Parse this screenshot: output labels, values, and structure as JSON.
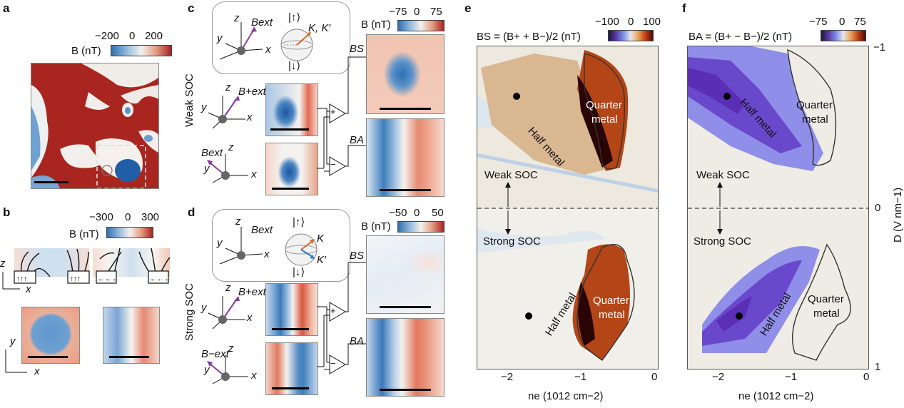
{
  "panels": {
    "a": {
      "label": "a",
      "colorbar": {
        "ticks": [
          "−200",
          "0",
          "200"
        ],
        "title": "B (nT)"
      }
    },
    "b": {
      "label": "b",
      "colorbar": {
        "ticks": [
          "−300",
          "0",
          "300"
        ],
        "title": "B (nT)"
      },
      "axes_side": {
        "z": "z",
        "x": "x"
      },
      "axes_top": {
        "y": "y",
        "x": "x"
      }
    },
    "c": {
      "label": "c",
      "side_label": "Weak SOC",
      "colorbar": {
        "ticks": [
          "−75",
          "0",
          "75"
        ],
        "title": "B (nT)"
      },
      "inset": {
        "z": "z",
        "y": "y",
        "x": "x",
        "bext": "Bext",
        "up": "|↑⟩",
        "down": "|↓⟩",
        "valley": "K, K′"
      },
      "bplus": "B+ext",
      "bminus": "Bext",
      "out_s": "BS",
      "out_a": "BA",
      "op_plus": "+",
      "op_minus": "−"
    },
    "d": {
      "label": "d",
      "side_label": "Strong SOC",
      "colorbar": {
        "ticks": [
          "−50",
          "0",
          "50"
        ],
        "title": "B (nT)"
      },
      "inset": {
        "z": "z",
        "y": "y",
        "x": "x",
        "bext": "Bext",
        "up": "|↑⟩",
        "down": "|↓⟩",
        "k": "K",
        "kp": "K′"
      },
      "bplus": "B+ext",
      "bminus": "B−ext",
      "out_s": "BS",
      "out_a": "BA",
      "op_plus": "+",
      "op_minus": "−"
    },
    "e": {
      "label": "e",
      "title": "BS = (B+ + B−)/2 (nT)",
      "colorbar": {
        "ticks": [
          "−100",
          "0",
          "100"
        ]
      },
      "regions": {
        "half_top": "Half metal",
        "quarter_top_1": "Quarter",
        "quarter_top_2": "metal",
        "half_bottom": "Half metal",
        "quarter_bottom_1": "Quarter",
        "quarter_bottom_2": "metal"
      },
      "weak": "Weak SOC",
      "strong": "Strong SOC",
      "xticks": [
        "−2",
        "−1",
        "0"
      ],
      "xlabel": "ne (1012 cm−2)"
    },
    "f": {
      "label": "f",
      "title": "BA = (B+ − B−)/2 (nT)",
      "colorbar": {
        "ticks": [
          "−75",
          "0",
          "75"
        ]
      },
      "regions": {
        "half_top": "Half metal",
        "quarter_top_1": "Quarter",
        "quarter_top_2": "metal",
        "half_bottom": "Half metal",
        "quarter_bottom_1": "Quarter",
        "quarter_bottom_2": "metal"
      },
      "weak": "Weak SOC",
      "strong": "Strong SOC",
      "xticks": [
        "−2",
        "−1",
        "0"
      ],
      "xlabel": "ne (1012 cm−2)",
      "yticks": [
        "−1",
        "0",
        "1"
      ],
      "ylabel": "D (V nm−1)"
    }
  },
  "colors": {
    "red": "#b2221f",
    "blue": "#2d6fb3",
    "white": "#f4f1ee"
  }
}
